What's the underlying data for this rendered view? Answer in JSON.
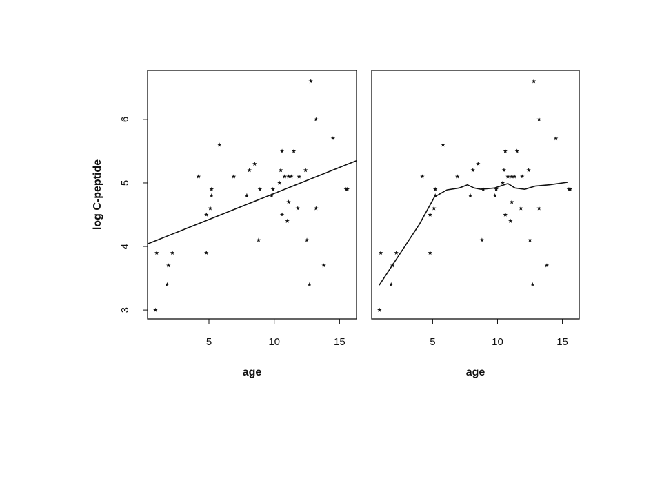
{
  "chart_data": [
    {
      "type": "scatter",
      "color": "#111",
      "xlabel": "age",
      "ylabel": "log C-peptide",
      "x": [
        5.2,
        8.8,
        10.5,
        10.6,
        10.4,
        1.8,
        12.7,
        15.6,
        5.8,
        1.9,
        2.2,
        4.8,
        7.9,
        5.2,
        0.9,
        11.8,
        7.9,
        11.5,
        10.6,
        8.5,
        11.1,
        12.8,
        11.3,
        1.0,
        14.5,
        11.9,
        8.1,
        13.8,
        15.5,
        9.8,
        11.0,
        12.4,
        11.1,
        5.1,
        4.8,
        4.2,
        6.9,
        13.2,
        9.9,
        12.5,
        13.2,
        8.9,
        10.8
      ],
      "values": [
        4.8,
        4.1,
        5.2,
        5.5,
        5.0,
        3.4,
        3.4,
        4.9,
        5.6,
        3.7,
        3.9,
        4.5,
        4.8,
        4.9,
        3.0,
        4.6,
        4.8,
        5.5,
        4.5,
        5.3,
        4.7,
        6.6,
        5.1,
        3.9,
        5.7,
        5.1,
        5.2,
        3.7,
        4.9,
        4.8,
        4.4,
        5.2,
        5.1,
        4.6,
        3.9,
        5.1,
        5.1,
        6.0,
        4.9,
        4.1,
        4.6,
        4.9,
        5.1
      ],
      "fit": {
        "x": [
          0.3,
          16.3
        ],
        "y": [
          4.04,
          5.35
        ]
      },
      "xlim": [
        0.3,
        16.3
      ],
      "ylim": [
        2.86,
        6.77
      ],
      "xticks": [
        5,
        10,
        15
      ],
      "yticks": [
        3,
        4,
        5,
        6
      ]
    },
    {
      "type": "scatter",
      "color": "#111",
      "xlabel": "age",
      "x": [
        5.2,
        8.8,
        10.5,
        10.6,
        10.4,
        1.8,
        12.7,
        15.6,
        5.8,
        1.9,
        2.2,
        4.8,
        7.9,
        5.2,
        0.9,
        11.8,
        7.9,
        11.5,
        10.6,
        8.5,
        11.1,
        12.8,
        11.3,
        1.0,
        14.5,
        11.9,
        8.1,
        13.8,
        15.5,
        9.8,
        11.0,
        12.4,
        11.1,
        5.1,
        4.8,
        4.2,
        6.9,
        13.2,
        9.9,
        12.5,
        13.2,
        8.9,
        10.8
      ],
      "values": [
        4.8,
        4.1,
        5.2,
        5.5,
        5.0,
        3.4,
        3.4,
        4.9,
        5.6,
        3.7,
        3.9,
        4.5,
        4.8,
        4.9,
        3.0,
        4.6,
        4.8,
        5.5,
        4.5,
        5.3,
        4.7,
        6.6,
        5.1,
        3.9,
        5.7,
        5.1,
        5.2,
        3.7,
        4.9,
        4.8,
        4.4,
        5.2,
        5.1,
        4.6,
        3.9,
        5.1,
        5.1,
        6.0,
        4.9,
        4.1,
        4.6,
        4.9,
        5.1
      ],
      "fit": {
        "x": [
          0.88,
          3.98,
          5.14,
          6.1,
          7.05,
          7.68,
          8.2,
          8.73,
          9.78,
          10.8,
          11.35,
          12.1,
          12.9,
          14.0,
          15.4
        ],
        "y": [
          3.39,
          4.35,
          4.78,
          4.89,
          4.92,
          4.97,
          4.92,
          4.9,
          4.92,
          4.99,
          4.92,
          4.9,
          4.95,
          4.97,
          5.01
        ]
      },
      "xlim": [
        0.3,
        16.3
      ],
      "ylim": [
        2.86,
        6.77
      ],
      "xticks": [
        5,
        10,
        15
      ]
    }
  ]
}
